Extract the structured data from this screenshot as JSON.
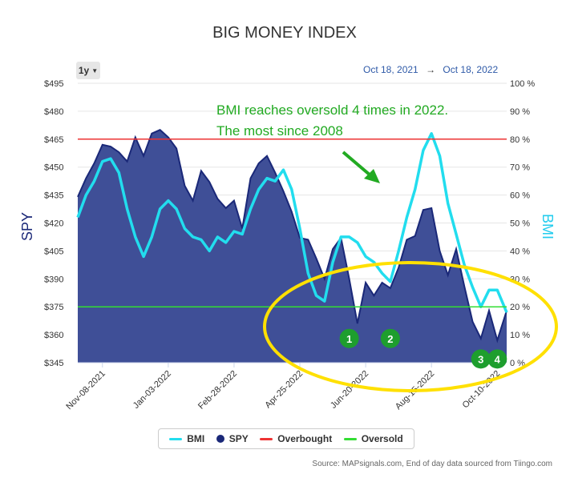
{
  "range_button": "1y",
  "date_range": {
    "from": "Oct 18, 2021",
    "to": "Oct 18, 2022",
    "arrow": "→"
  },
  "source": "Source: MAPsignals.com, End of day data sourced from Tiingo.com",
  "chart_data": {
    "type": "area",
    "title": "BIG MONEY INDEX",
    "ylabel_left": "SPY",
    "ylabel_right": "BMI",
    "y_left": {
      "min": 345,
      "max": 495,
      "ticks": [
        "$495",
        "$480",
        "$465",
        "$450",
        "$435",
        "$420",
        "$405",
        "$390",
        "$375",
        "$360",
        "$345"
      ]
    },
    "y_right": {
      "min": 0,
      "max": 100,
      "ticks": [
        "100 %",
        "90 %",
        "80 %",
        "70 %",
        "60 %",
        "50 %",
        "40 %",
        "30 %",
        "20 %",
        "10 %",
        "0 %"
      ]
    },
    "x_ticks": [
      "Nov-08-2021",
      "Jan-03-2022",
      "Feb-28-2022",
      "Apr-25-2022",
      "Jun-20-2022",
      "Aug-15-2022",
      "Oct-10-2022"
    ],
    "x_start": "Oct-18-2021",
    "x_end": "Oct-18-2022",
    "overbought": 80,
    "oversold": 20,
    "colors": {
      "spy_fill": "#3f4f97",
      "spy_line": "#1a2878",
      "bmi": "#22ddee",
      "overbought": "#ee3333",
      "oversold": "#33dd33",
      "annotation": "#22aa22",
      "ellipse": "#ffe000",
      "marker": "#1e9e2e"
    },
    "series": [
      {
        "name": "SPY",
        "points": [
          [
            "Oct-18-2021",
            434
          ],
          [
            "Oct-25-2021",
            444
          ],
          [
            "Nov-01-2021",
            452
          ],
          [
            "Nov-08-2021",
            462
          ],
          [
            "Nov-15-2021",
            461
          ],
          [
            "Nov-22-2021",
            458
          ],
          [
            "Nov-29-2021",
            453
          ],
          [
            "Dec-06-2021",
            466
          ],
          [
            "Dec-13-2021",
            456
          ],
          [
            "Dec-20-2021",
            468
          ],
          [
            "Dec-27-2021",
            470
          ],
          [
            "Jan-03-2022",
            466
          ],
          [
            "Jan-10-2022",
            460
          ],
          [
            "Jan-17-2022",
            440
          ],
          [
            "Jan-24-2022",
            432
          ],
          [
            "Jan-31-2022",
            448
          ],
          [
            "Feb-07-2022",
            442
          ],
          [
            "Feb-14-2022",
            433
          ],
          [
            "Feb-21-2022",
            428
          ],
          [
            "Feb-28-2022",
            432
          ],
          [
            "Mar-07-2022",
            417
          ],
          [
            "Mar-14-2022",
            444
          ],
          [
            "Mar-21-2022",
            452
          ],
          [
            "Mar-28-2022",
            456
          ],
          [
            "Apr-04-2022",
            447
          ],
          [
            "Apr-11-2022",
            437
          ],
          [
            "Apr-18-2022",
            426
          ],
          [
            "Apr-25-2022",
            412
          ],
          [
            "May-02-2022",
            411
          ],
          [
            "May-09-2022",
            401
          ],
          [
            "May-16-2022",
            390
          ],
          [
            "May-23-2022",
            406
          ],
          [
            "May-30-2022",
            412
          ],
          [
            "Jun-06-2022",
            390
          ],
          [
            "Jun-13-2022",
            366
          ],
          [
            "Jun-20-2022",
            388
          ],
          [
            "Jun-27-2022",
            381
          ],
          [
            "Jul-04-2022",
            388
          ],
          [
            "Jul-11-2022",
            385
          ],
          [
            "Jul-18-2022",
            396
          ],
          [
            "Jul-25-2022",
            411
          ],
          [
            "Aug-01-2022",
            413
          ],
          [
            "Aug-08-2022",
            427
          ],
          [
            "Aug-15-2022",
            428
          ],
          [
            "Aug-22-2022",
            405
          ],
          [
            "Aug-29-2022",
            392
          ],
          [
            "Sep-05-2022",
            406
          ],
          [
            "Sep-12-2022",
            386
          ],
          [
            "Sep-19-2022",
            367
          ],
          [
            "Sep-26-2022",
            358
          ],
          [
            "Oct-03-2022",
            373
          ],
          [
            "Oct-10-2022",
            357
          ],
          [
            "Oct-18-2022",
            373
          ]
        ]
      },
      {
        "name": "BMI",
        "points": [
          [
            "Oct-18-2021",
            52
          ],
          [
            "Oct-25-2021",
            60
          ],
          [
            "Nov-01-2021",
            65
          ],
          [
            "Nov-08-2021",
            72
          ],
          [
            "Nov-15-2021",
            73
          ],
          [
            "Nov-22-2021",
            68
          ],
          [
            "Nov-29-2021",
            55
          ],
          [
            "Dec-06-2021",
            45
          ],
          [
            "Dec-13-2021",
            38
          ],
          [
            "Dec-20-2021",
            45
          ],
          [
            "Dec-27-2021",
            55
          ],
          [
            "Jan-03-2022",
            58
          ],
          [
            "Jan-10-2022",
            55
          ],
          [
            "Jan-17-2022",
            48
          ],
          [
            "Jan-24-2022",
            45
          ],
          [
            "Jan-31-2022",
            44
          ],
          [
            "Feb-07-2022",
            40
          ],
          [
            "Feb-14-2022",
            45
          ],
          [
            "Feb-21-2022",
            43
          ],
          [
            "Feb-28-2022",
            47
          ],
          [
            "Mar-07-2022",
            46
          ],
          [
            "Mar-14-2022",
            55
          ],
          [
            "Mar-21-2022",
            62
          ],
          [
            "Mar-28-2022",
            66
          ],
          [
            "Apr-04-2022",
            65
          ],
          [
            "Apr-11-2022",
            69
          ],
          [
            "Apr-18-2022",
            62
          ],
          [
            "Apr-25-2022",
            48
          ],
          [
            "May-02-2022",
            32
          ],
          [
            "May-09-2022",
            24
          ],
          [
            "May-16-2022",
            22
          ],
          [
            "May-23-2022",
            36
          ],
          [
            "May-30-2022",
            45
          ],
          [
            "Jun-06-2022",
            45
          ],
          [
            "Jun-13-2022",
            43
          ],
          [
            "Jun-20-2022",
            38
          ],
          [
            "Jun-27-2022",
            36
          ],
          [
            "Jul-04-2022",
            32
          ],
          [
            "Jul-11-2022",
            29
          ],
          [
            "Jul-18-2022",
            40
          ],
          [
            "Jul-25-2022",
            52
          ],
          [
            "Aug-01-2022",
            62
          ],
          [
            "Aug-08-2022",
            76
          ],
          [
            "Aug-15-2022",
            82
          ],
          [
            "Aug-22-2022",
            74
          ],
          [
            "Aug-29-2022",
            57
          ],
          [
            "Sep-05-2022",
            46
          ],
          [
            "Sep-12-2022",
            35
          ],
          [
            "Sep-19-2022",
            27
          ],
          [
            "Sep-26-2022",
            20
          ],
          [
            "Oct-03-2022",
            26
          ],
          [
            "Oct-10-2022",
            26
          ],
          [
            "Oct-18-2022",
            18
          ]
        ]
      }
    ],
    "annotation": {
      "line1": "BMI reaches oversold 4 times in 2022.",
      "line2": "The most since 2008"
    },
    "markers": [
      {
        "label": "1",
        "date": "Jun-06-2022",
        "spy": 358
      },
      {
        "label": "2",
        "date": "Jul-11-2022",
        "spy": 358
      },
      {
        "label": "3",
        "date": "Sep-26-2022",
        "spy": 347
      },
      {
        "label": "4",
        "date": "Oct-10-2022",
        "spy": 347
      }
    ],
    "legend": [
      {
        "name": "BMI",
        "shape": "line",
        "color": "#22ddee"
      },
      {
        "name": "SPY",
        "shape": "dot",
        "color": "#1a2878"
      },
      {
        "name": "Overbought",
        "shape": "line",
        "color": "#ee3333"
      },
      {
        "name": "Oversold",
        "shape": "line",
        "color": "#33dd33"
      }
    ]
  }
}
